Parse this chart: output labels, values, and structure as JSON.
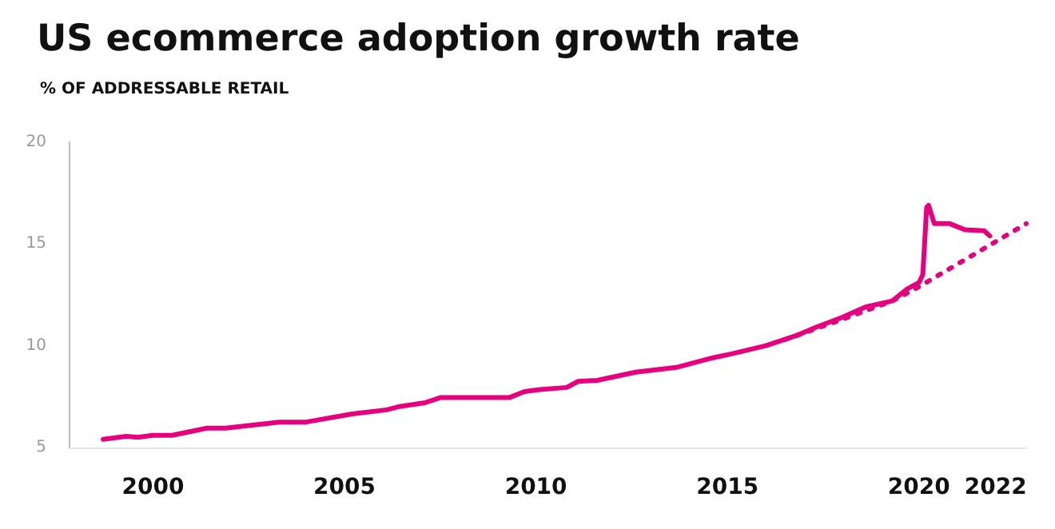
{
  "chart_data": {
    "type": "line",
    "title": "US ecommerce adoption growth rate",
    "subtitle": "% OF ADDRESSABLE RETAIL",
    "xlim": [
      1997.8,
      2022.8
    ],
    "xticks": [
      2000,
      2005,
      2010,
      2015,
      2020,
      2022
    ],
    "ylim": [
      5,
      20
    ],
    "yticks": [
      5,
      10,
      15,
      20
    ],
    "grid": false,
    "marker": "none",
    "series": [
      {
        "color": "#e6007e",
        "line_style": "solid",
        "x": [
          1998.7,
          1999.3,
          1999.6,
          2000.0,
          2000.5,
          2001.4,
          2001.9,
          2003.3,
          2004.0,
          2005.2,
          2006.1,
          2006.4,
          2007.1,
          2007.5,
          2009.3,
          2009.7,
          2010.1,
          2010.8,
          2011.1,
          2011.6,
          2012.6,
          2013.7,
          2014.6,
          2015.1,
          2016.0,
          2016.8,
          2017.3,
          2018.0,
          2018.6,
          2019.3,
          2019.7,
          2020.0,
          2020.1,
          2020.2,
          2020.25,
          2020.4,
          2020.8,
          2021.2,
          2021.7,
          2021.85
        ],
        "values": [
          5.4,
          5.55,
          5.5,
          5.6,
          5.6,
          5.95,
          5.95,
          6.25,
          6.25,
          6.65,
          6.85,
          7.0,
          7.2,
          7.45,
          7.45,
          7.75,
          7.85,
          7.95,
          8.25,
          8.3,
          8.7,
          8.95,
          9.4,
          9.6,
          10.0,
          10.5,
          10.9,
          11.4,
          11.9,
          12.2,
          12.8,
          13.1,
          13.5,
          16.8,
          16.9,
          16.0,
          16.0,
          15.7,
          15.65,
          15.4
        ]
      },
      {
        "color": "#e6007e",
        "line_style": "dotted",
        "x": [
          2016.5,
          2018.0,
          2019.3,
          2020.0,
          2022.8
        ],
        "values": [
          10.3,
          11.3,
          12.2,
          12.9,
          16.0
        ]
      }
    ]
  }
}
